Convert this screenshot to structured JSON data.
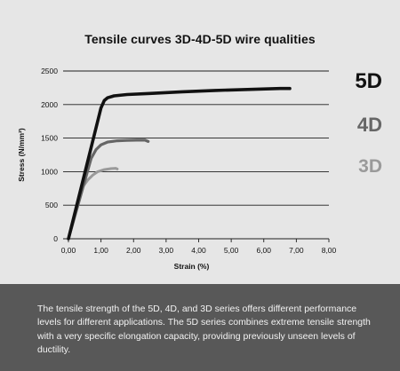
{
  "chart_data": {
    "type": "line",
    "title": "Tensile curves 3D-4D-5D wire qualities",
    "xlabel": "Strain (%)",
    "ylabel": "Stress (N/mm²)",
    "xlim": [
      0,
      8
    ],
    "ylim": [
      0,
      2500
    ],
    "x_ticks": [
      "0,00",
      "1,00",
      "2,00",
      "3,00",
      "4,00",
      "5,00",
      "6,00",
      "7,00",
      "8,00"
    ],
    "y_ticks": [
      "0",
      "500",
      "1000",
      "1500",
      "2000",
      "2500"
    ],
    "grid": "horizontal",
    "legend": "right",
    "series": [
      {
        "name": "5D",
        "color": "#111111",
        "x": [
          0,
          1.0,
          1.1,
          1.2,
          1.4,
          1.8,
          2.5,
          3.5,
          4.5,
          5.5,
          6.5,
          6.8
        ],
        "y": [
          0,
          1950,
          2060,
          2100,
          2130,
          2150,
          2165,
          2190,
          2210,
          2225,
          2240,
          2240
        ]
      },
      {
        "name": "4D",
        "color": "#666666",
        "x": [
          0,
          0.7,
          0.85,
          1.0,
          1.2,
          1.5,
          1.8,
          2.1,
          2.35,
          2.45
        ],
        "y": [
          0,
          1200,
          1330,
          1400,
          1440,
          1460,
          1465,
          1470,
          1470,
          1450
        ]
      },
      {
        "name": "3D",
        "color": "#9a9a9a",
        "x": [
          0,
          0.45,
          0.6,
          0.75,
          0.9,
          1.1,
          1.3,
          1.45,
          1.5
        ],
        "y": [
          0,
          780,
          880,
          950,
          1000,
          1030,
          1045,
          1050,
          1040
        ]
      }
    ]
  },
  "description": "The tensile strength of the 5D, 4D, and 3D series offers different performance levels for different applications. The 5D series combines extreme tensile strength with a very specific elongation capacity, providing previously unseen levels of ductility."
}
